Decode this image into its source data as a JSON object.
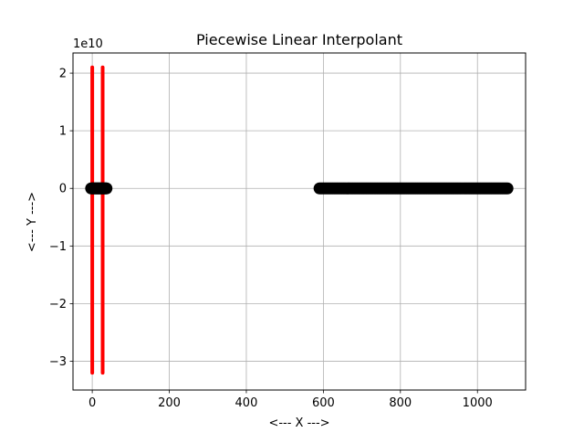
{
  "chart_data": {
    "type": "scatter",
    "title": "Piecewise Linear Interpolant",
    "xlabel": "<--- X --->",
    "ylabel": "<--- Y --->",
    "y_offset_label": "1e10",
    "y_scale": 10000000000,
    "xlim": [
      -50,
      1125
    ],
    "ylim": [
      -3.5,
      2.35
    ],
    "x_ticks": [
      0,
      200,
      400,
      600,
      800,
      1000
    ],
    "y_ticks": [
      -3,
      -2,
      -1,
      0,
      1,
      2
    ],
    "y_tick_labels": [
      "−3",
      "−2",
      "−1",
      "0",
      "1",
      "2"
    ],
    "grid": true,
    "series": [
      {
        "kind": "line",
        "color": "#ff0000",
        "segments": [
          {
            "x": [
              0,
              0
            ],
            "y": [
              2.1,
              -3.2
            ]
          },
          {
            "x": [
              27,
              27
            ],
            "y": [
              2.1,
              -3.2
            ]
          }
        ]
      },
      {
        "kind": "points",
        "color": "#000000",
        "x_ranges": [
          [
            -3,
            37,
            2
          ],
          [
            590,
            1078,
            4
          ]
        ],
        "y": 0
      }
    ]
  }
}
